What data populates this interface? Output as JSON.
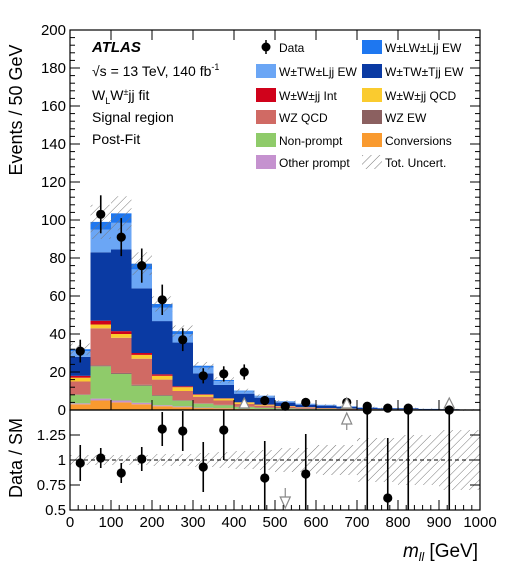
{
  "chart_data": {
    "type": "bar",
    "xlabel": "m_ll [GeV]",
    "xlabel_main": "m",
    "xlabel_sub": "ll",
    "xlabel_unit": " [GeV]",
    "ylabel_top": "Events / 50 GeV",
    "ylabel_bottom": "Data / SM",
    "xlim": [
      0,
      1000
    ],
    "ylim_top": [
      0,
      200
    ],
    "ylim_bottom": [
      0.5,
      1.5
    ],
    "x_ticks": [
      "0",
      "100",
      "200",
      "300",
      "400",
      "500",
      "600",
      "700",
      "800",
      "900",
      "1000"
    ],
    "y_ticks_top": [
      "0",
      "20",
      "40",
      "60",
      "80",
      "100",
      "120",
      "140",
      "160",
      "180",
      "200"
    ],
    "y_ticks_bottom": [
      "0.5",
      "0.75",
      "1",
      "1.25"
    ],
    "annotations": {
      "atlas": "ATLAS",
      "energy": "√s = 13 TeV, 140 fb",
      "energy_sup": "-1",
      "fit": "W±LW±jj fit",
      "fit_main": "W",
      "fit_sub": "L",
      "fit_rest": "W",
      "fit_sup2": "±",
      "fit_tail": "jj fit",
      "region": "Signal region",
      "postfit": "Post-Fit"
    },
    "legend": [
      {
        "key": "data",
        "label": "Data",
        "color": "#000000",
        "style": "marker"
      },
      {
        "key": "llEW",
        "label": "W±LW±Ljj EW",
        "color": "#1E77F0",
        "style": "fill"
      },
      {
        "key": "tlEW",
        "label": "W±TW±Ljj EW",
        "color": "#6BA6F5",
        "style": "fill"
      },
      {
        "key": "ttEW",
        "label": "W±TW±Tjj EW",
        "color": "#0A3AA3",
        "style": "fill"
      },
      {
        "key": "int",
        "label": "W±W±jj Int",
        "color": "#D0021B",
        "style": "fill"
      },
      {
        "key": "qcd",
        "label": "W±W±jj QCD",
        "color": "#FACB2F",
        "style": "fill"
      },
      {
        "key": "wzqcd",
        "label": "WZ QCD",
        "color": "#D06A64",
        "style": "fill"
      },
      {
        "key": "wzew",
        "label": "WZ EW",
        "color": "#8B6060",
        "style": "fill"
      },
      {
        "key": "nonprompt",
        "label": "Non-prompt",
        "color": "#8FCB6A",
        "style": "fill"
      },
      {
        "key": "conv",
        "label": "Conversions",
        "color": "#F99A2F",
        "style": "fill"
      },
      {
        "key": "other",
        "label": "Other prompt",
        "color": "#C592CF",
        "style": "fill"
      },
      {
        "key": "unc",
        "label": "Tot. Uncert.",
        "color": "#888888",
        "style": "hatch"
      }
    ],
    "bin_edges": [
      0,
      50,
      100,
      150,
      200,
      250,
      300,
      350,
      400,
      450,
      500,
      550,
      600,
      650,
      700,
      750,
      800,
      850,
      900,
      950,
      1000
    ],
    "stack_order": [
      "conv",
      "other",
      "nonprompt",
      "wzew",
      "wzqcd",
      "qcd",
      "int",
      "ttEW",
      "tlEW",
      "llEW"
    ],
    "series": [
      {
        "key": "conv",
        "name": "Conversions",
        "color": "#F99A2F",
        "values": [
          3,
          5,
          4,
          3,
          2,
          1.5,
          1,
          0.8,
          0.5,
          0.4,
          0.3,
          0.2,
          0.2,
          0.1,
          0.1,
          0.1,
          0.1,
          0,
          0,
          0
        ]
      },
      {
        "key": "other",
        "name": "Other prompt",
        "color": "#C592CF",
        "values": [
          0.5,
          1,
          1,
          0.8,
          0.5,
          0.4,
          0.3,
          0.2,
          0.1,
          0.1,
          0.1,
          0.1,
          0,
          0,
          0,
          0,
          0,
          0,
          0,
          0
        ]
      },
      {
        "key": "nonprompt",
        "name": "Non-prompt",
        "color": "#8FCB6A",
        "values": [
          4.5,
          17,
          14,
          9,
          5,
          3,
          2,
          1.5,
          1,
          0.7,
          0.5,
          0.3,
          0.3,
          0.2,
          0.1,
          0.1,
          0.1,
          0.1,
          0,
          0
        ]
      },
      {
        "key": "wzew",
        "name": "WZ EW",
        "color": "#8B6060",
        "values": [
          0.2,
          0.5,
          0.5,
          0.5,
          0.4,
          0.3,
          0.2,
          0.2,
          0.1,
          0.1,
          0.1,
          0.1,
          0,
          0,
          0,
          0,
          0,
          0,
          0,
          0
        ]
      },
      {
        "key": "wzqcd",
        "name": "WZ QCD",
        "color": "#D06A64",
        "values": [
          6.8,
          19.5,
          18.5,
          13.7,
          8.1,
          4.8,
          3.5,
          2.3,
          1.5,
          1,
          0.7,
          0.5,
          0.3,
          0.2,
          0.2,
          0.1,
          0.1,
          0.1,
          0.1,
          0
        ]
      },
      {
        "key": "qcd",
        "name": "W±W±jj QCD",
        "color": "#FACB2F",
        "values": [
          2,
          2,
          2,
          2,
          2,
          2,
          1,
          1,
          0.8,
          0.5,
          0.3,
          0.2,
          0.2,
          0.2,
          0.1,
          0.1,
          0.1,
          0,
          0,
          0
        ]
      },
      {
        "key": "int",
        "name": "W±W±jj Int",
        "color": "#D0021B",
        "values": [
          1,
          2,
          1.5,
          1,
          0.8,
          0.5,
          0.3,
          0.2,
          0.1,
          0.1,
          0.1,
          0.1,
          0,
          0,
          0,
          0,
          0,
          0,
          0,
          0
        ]
      },
      {
        "key": "ttEW",
        "name": "W±TW±Tjj EW",
        "color": "#0A3AA3",
        "values": [
          10,
          36,
          43,
          34,
          28,
          23,
          11,
          7,
          4.5,
          3.6,
          1.8,
          1.3,
          1.3,
          1,
          0.7,
          0.5,
          0.5,
          0.3,
          0.3,
          0.2
        ]
      },
      {
        "key": "tlEW",
        "name": "W±TW±Ljj EW",
        "color": "#6BA6F5",
        "values": [
          3,
          12,
          14,
          10,
          7,
          4.5,
          3,
          2,
          1.2,
          0.8,
          0.5,
          0.4,
          0.3,
          0.2,
          0.2,
          0.1,
          0.1,
          0.1,
          0,
          0
        ]
      },
      {
        "key": "llEW",
        "name": "W±LW±Ljj EW",
        "color": "#1E77F0",
        "values": [
          1,
          4,
          5,
          3,
          2,
          1.5,
          1,
          0.6,
          0.4,
          0.2,
          0.2,
          0.1,
          0.1,
          0.1,
          0,
          0,
          0,
          0,
          0,
          0
        ]
      }
    ],
    "uncertainty": [
      3,
      9,
      9,
      6,
      4,
      3,
      2,
      1.5,
      1,
      0.8,
      0.5,
      0.4,
      0.3,
      0.3,
      0.3,
      0.2,
      0.2,
      0.2,
      0.2,
      0.2
    ],
    "ratio_uncertainty": [
      0.05,
      0.05,
      0.05,
      0.05,
      0.06,
      0.06,
      0.07,
      0.08,
      0.09,
      0.1,
      0.12,
      0.12,
      0.15,
      0.15,
      0.22,
      0.22,
      0.25,
      0.25,
      0.3,
      0.3
    ],
    "data": {
      "x": [
        25,
        75,
        125,
        175,
        225,
        275,
        325,
        375,
        425,
        475,
        525,
        575,
        675,
        725,
        775,
        825,
        925
      ],
      "y": [
        31,
        103,
        91,
        76,
        58,
        37,
        18,
        19,
        20,
        5,
        2,
        4,
        4,
        2,
        1,
        1,
        1
      ],
      "err": [
        6,
        10,
        10,
        9,
        8,
        6,
        4,
        4,
        4,
        2.2,
        1.4,
        2,
        2,
        1.4,
        1,
        1,
        1
      ]
    },
    "ratio": {
      "x": [
        25,
        75,
        125,
        175,
        225,
        275,
        325,
        375,
        475,
        575,
        725,
        775,
        825,
        925
      ],
      "y": [
        0.97,
        1.02,
        0.87,
        1.01,
        1.31,
        1.29,
        0.93,
        1.3,
        0.82,
        0.86,
        1.5,
        0.62,
        1.5,
        1.5
      ],
      "err": [
        0.18,
        0.1,
        0.1,
        0.12,
        0.17,
        0.2,
        0.25,
        0.3,
        0.37,
        0.4,
        1.0,
        0.6,
        1.0,
        1.0
      ]
    },
    "ratio_arrows_up": [
      675
    ],
    "ratio_arrows_down": [
      525
    ],
    "top_arrows": [
      425,
      675,
      925
    ]
  }
}
